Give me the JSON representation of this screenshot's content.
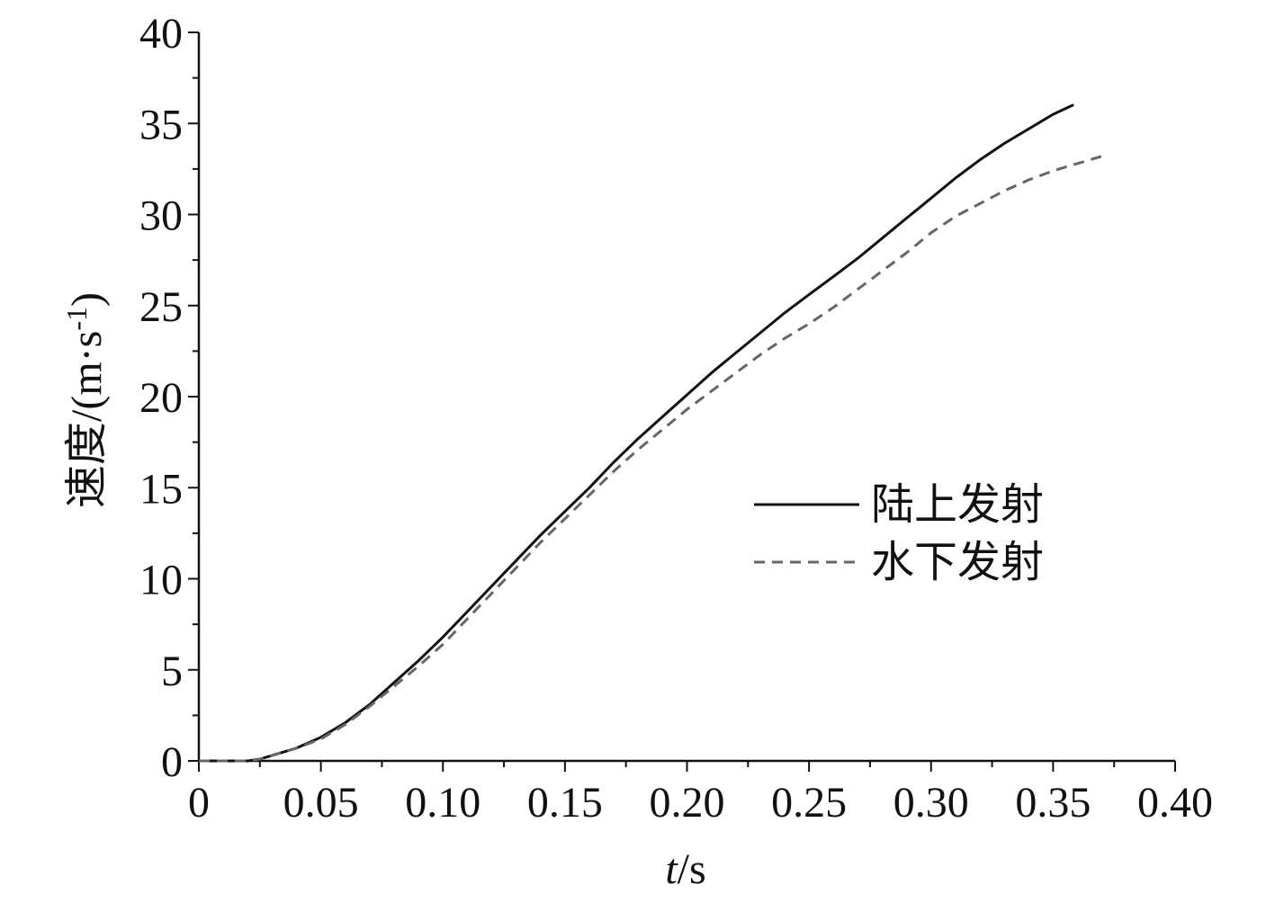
{
  "chart_data": {
    "type": "line",
    "xlabel_italic": "t",
    "xlabel_unit": "/s",
    "ylabel_main": "速度/(m·s",
    "ylabel_sup": "-1",
    "ylabel_close": ")",
    "xlim": [
      0,
      0.4
    ],
    "ylim": [
      0,
      40
    ],
    "x_ticks": [
      "0",
      "0.05",
      "0.10",
      "0.15",
      "0.20",
      "0.25",
      "0.30",
      "0.35",
      "0.40"
    ],
    "y_ticks": [
      "0",
      "5",
      "10",
      "15",
      "20",
      "25",
      "30",
      "35",
      "40"
    ],
    "grid": false,
    "legend_position": "center-right",
    "series": [
      {
        "name": "陆上发射",
        "color": "#111111",
        "style": "solid",
        "x": [
          0,
          0.02,
          0.025,
          0.03,
          0.04,
          0.05,
          0.06,
          0.07,
          0.08,
          0.09,
          0.1,
          0.11,
          0.12,
          0.13,
          0.14,
          0.15,
          0.16,
          0.17,
          0.18,
          0.19,
          0.2,
          0.21,
          0.22,
          0.23,
          0.24,
          0.25,
          0.26,
          0.27,
          0.28,
          0.29,
          0.3,
          0.31,
          0.32,
          0.33,
          0.34,
          0.35,
          0.358
        ],
        "y": [
          0,
          0,
          0.1,
          0.3,
          0.7,
          1.3,
          2.1,
          3.1,
          4.3,
          5.5,
          6.8,
          8.2,
          9.6,
          11.0,
          12.4,
          13.7,
          15.0,
          16.4,
          17.7,
          18.9,
          20.1,
          21.3,
          22.4,
          23.5,
          24.6,
          25.6,
          26.6,
          27.6,
          28.7,
          29.8,
          30.9,
          32.0,
          33.0,
          33.9,
          34.7,
          35.5,
          36.0
        ]
      },
      {
        "name": "水下发射",
        "color": "#666666",
        "style": "dashed",
        "x": [
          0,
          0.02,
          0.025,
          0.03,
          0.04,
          0.05,
          0.06,
          0.07,
          0.08,
          0.09,
          0.1,
          0.11,
          0.12,
          0.13,
          0.14,
          0.15,
          0.16,
          0.17,
          0.18,
          0.19,
          0.2,
          0.21,
          0.22,
          0.23,
          0.24,
          0.25,
          0.26,
          0.27,
          0.28,
          0.29,
          0.3,
          0.31,
          0.32,
          0.33,
          0.34,
          0.35,
          0.36,
          0.37
        ],
        "y": [
          0,
          0,
          0.1,
          0.3,
          0.7,
          1.2,
          2.0,
          3.0,
          4.1,
          5.2,
          6.4,
          7.8,
          9.2,
          10.6,
          12.0,
          13.3,
          14.6,
          15.9,
          17.1,
          18.2,
          19.3,
          20.3,
          21.3,
          22.3,
          23.2,
          24.0,
          24.9,
          25.9,
          26.9,
          27.9,
          29.0,
          29.9,
          30.6,
          31.3,
          31.9,
          32.4,
          32.8,
          33.2
        ]
      }
    ]
  }
}
